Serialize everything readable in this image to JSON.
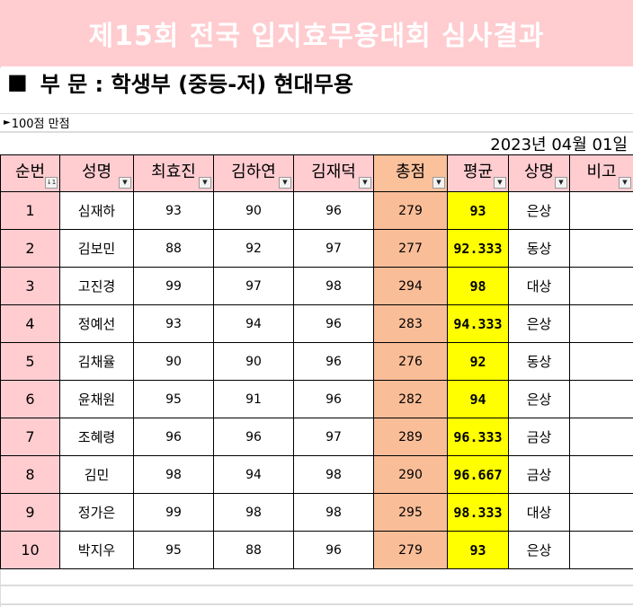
{
  "banner": {
    "title": "제15회 전국 입지효무용대회 심사결과"
  },
  "section": {
    "marker": "■",
    "label": "부 문 : 학생부 (중등-저) 현대무용"
  },
  "note": {
    "icon": "right-triangle-icon",
    "text": "100점 만점"
  },
  "date": "2023년 04월 01일",
  "colors": {
    "banner_bg": "#ffccd0",
    "total_bg": "#f9bd98",
    "avg_bg": "#ffff00"
  },
  "table": {
    "headers": [
      "순번",
      "성명",
      "최효진",
      "김하연",
      "김재덕",
      "총점",
      "평균",
      "상명",
      "비고"
    ],
    "sort_indicator": "↓1",
    "filter_glyph": "▼",
    "rows": [
      {
        "rank": "1",
        "name": "심재하",
        "s1": "93",
        "s2": "90",
        "s3": "96",
        "total": "279",
        "avg": "93",
        "award": "은상",
        "note": ""
      },
      {
        "rank": "2",
        "name": "김보민",
        "s1": "88",
        "s2": "92",
        "s3": "97",
        "total": "277",
        "avg": "92.333",
        "award": "동상",
        "note": ""
      },
      {
        "rank": "3",
        "name": "고진경",
        "s1": "99",
        "s2": "97",
        "s3": "98",
        "total": "294",
        "avg": "98",
        "award": "대상",
        "note": ""
      },
      {
        "rank": "4",
        "name": "정예선",
        "s1": "93",
        "s2": "94",
        "s3": "96",
        "total": "283",
        "avg": "94.333",
        "award": "은상",
        "note": ""
      },
      {
        "rank": "5",
        "name": "김채율",
        "s1": "90",
        "s2": "90",
        "s3": "96",
        "total": "276",
        "avg": "92",
        "award": "동상",
        "note": ""
      },
      {
        "rank": "6",
        "name": "윤채원",
        "s1": "95",
        "s2": "91",
        "s3": "96",
        "total": "282",
        "avg": "94",
        "award": "은상",
        "note": ""
      },
      {
        "rank": "7",
        "name": "조혜령",
        "s1": "96",
        "s2": "96",
        "s3": "97",
        "total": "289",
        "avg": "96.333",
        "award": "금상",
        "note": ""
      },
      {
        "rank": "8",
        "name": "김민",
        "s1": "98",
        "s2": "94",
        "s3": "98",
        "total": "290",
        "avg": "96.667",
        "award": "금상",
        "note": ""
      },
      {
        "rank": "9",
        "name": "정가은",
        "s1": "99",
        "s2": "98",
        "s3": "98",
        "total": "295",
        "avg": "98.333",
        "award": "대상",
        "note": ""
      },
      {
        "rank": "10",
        "name": "박지우",
        "s1": "95",
        "s2": "88",
        "s3": "96",
        "total": "279",
        "avg": "93",
        "award": "은상",
        "note": ""
      }
    ]
  }
}
